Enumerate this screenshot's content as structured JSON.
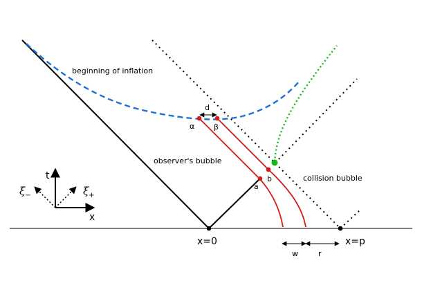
{
  "labels": {
    "beginning_of_inflation": "beginning of inflation",
    "observers_bubble": "observer's bubble",
    "collision_bubble": "collision bubble",
    "x_origin": "x=0",
    "x_p": "x=p",
    "w": "w",
    "r": "r",
    "d": "d",
    "alpha": "α",
    "beta": "β",
    "a": "a",
    "b": "b",
    "axis_t": "t",
    "axis_x": "x",
    "xi_minus": "ξ",
    "xi_minus_sub": "−",
    "xi_plus": "ξ",
    "xi_plus_sub": "+"
  },
  "colors": {
    "inflation_curve": "#1f6fd6",
    "worldlines": "#d61a1a",
    "collision_path": "#14b814",
    "lines": "#000000"
  }
}
